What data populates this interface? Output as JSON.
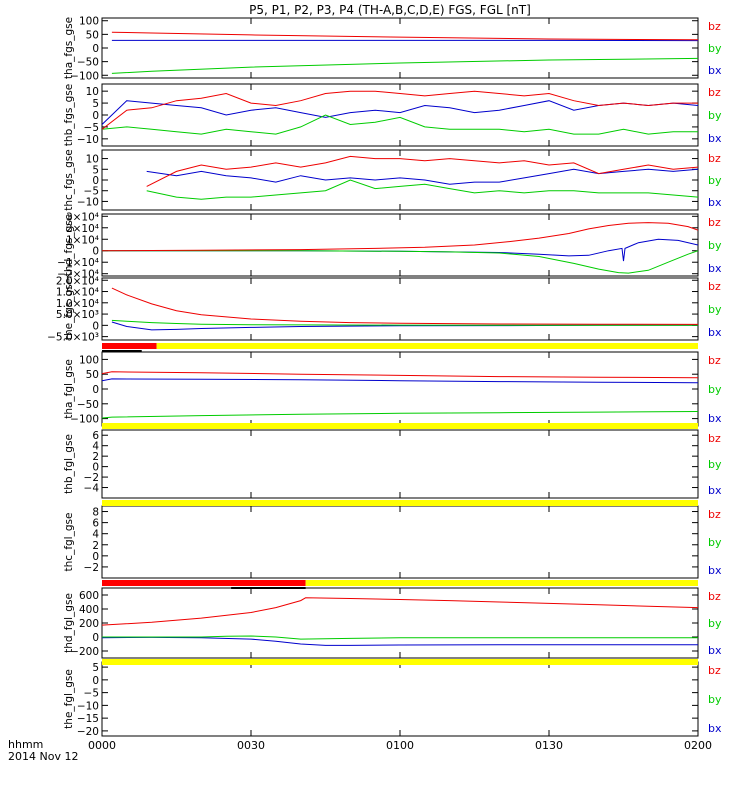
{
  "title": "P5, P1, P2, P3, P4 (TH-A,B,C,D,E) FGS, FGL [nT]",
  "footer": {
    "time_label": "hhmm",
    "date_label": "2014 Nov 12"
  },
  "legend_labels": [
    "bz",
    "by",
    "bx"
  ],
  "colors": {
    "bx": "#0000cc",
    "by": "#00cc00",
    "bz": "#ee0000",
    "bar_yellow": "#ffff00",
    "bar_red": "#ff0000",
    "bar_black": "#000000"
  },
  "chart_data": [
    {
      "type": "line",
      "panel": "tha_fgs_gse",
      "ylabel": "tha_fgs_gse",
      "xlim": [
        0,
        120
      ],
      "ylim": [
        -110,
        110
      ],
      "yticks": [
        100,
        50,
        0,
        -50,
        -100
      ],
      "yticklabels": [
        "100",
        "50",
        "0",
        "−50",
        "−100"
      ],
      "series": [
        {
          "name": "bz",
          "x": [
            2,
            10,
            30,
            60,
            90,
            120
          ],
          "y": [
            58,
            55,
            48,
            40,
            33,
            30
          ]
        },
        {
          "name": "by",
          "x": [
            2,
            10,
            30,
            60,
            90,
            120
          ],
          "y": [
            -93,
            -85,
            -70,
            -55,
            -44,
            -38
          ]
        },
        {
          "name": "bx",
          "x": [
            2,
            10,
            30,
            60,
            90,
            120
          ],
          "y": [
            28,
            28,
            28,
            28,
            28,
            27
          ]
        }
      ]
    },
    {
      "type": "line",
      "panel": "thb_fgs_gse",
      "ylabel": "thb_fgs_gse",
      "xlim": [
        0,
        120
      ],
      "ylim": [
        -13,
        13
      ],
      "yticks": [
        10,
        5,
        0,
        -5,
        -10
      ],
      "yticklabels": [
        "10",
        "5",
        "0",
        "−5",
        "−10"
      ],
      "series": [
        {
          "name": "bz",
          "x": [
            0,
            5,
            10,
            15,
            20,
            25,
            30,
            35,
            40,
            45,
            50,
            55,
            60,
            65,
            70,
            75,
            80,
            85,
            90,
            95,
            100,
            105,
            110,
            115,
            120
          ],
          "y": [
            -6,
            2,
            3,
            6,
            7,
            9,
            5,
            4,
            6,
            9,
            10,
            10,
            9,
            8,
            9,
            10,
            9,
            8,
            9,
            6,
            4,
            5,
            4,
            5,
            5
          ]
        },
        {
          "name": "by",
          "x": [
            0,
            5,
            10,
            15,
            20,
            25,
            30,
            35,
            40,
            45,
            50,
            55,
            60,
            65,
            70,
            75,
            80,
            85,
            90,
            95,
            100,
            105,
            110,
            115,
            120
          ],
          "y": [
            -6,
            -5,
            -6,
            -7,
            -8,
            -6,
            -7,
            -8,
            -5,
            0,
            -4,
            -3,
            -1,
            -5,
            -6,
            -6,
            -6,
            -7,
            -6,
            -8,
            -8,
            -6,
            -8,
            -7,
            -7
          ]
        },
        {
          "name": "bx",
          "x": [
            0,
            5,
            10,
            15,
            20,
            25,
            30,
            35,
            40,
            45,
            50,
            55,
            60,
            65,
            70,
            75,
            80,
            85,
            90,
            95,
            100,
            105,
            110,
            115,
            120
          ],
          "y": [
            -4,
            6,
            5,
            4,
            3,
            0,
            2,
            3,
            1,
            -1,
            1,
            2,
            1,
            4,
            3,
            1,
            2,
            4,
            6,
            2,
            4,
            5,
            4,
            5,
            4
          ]
        }
      ]
    },
    {
      "type": "line",
      "panel": "thc_fgs_gse",
      "ylabel": "thc_fgs_gse",
      "xlim": [
        0,
        120
      ],
      "ylim": [
        -14,
        14
      ],
      "yticks": [
        10,
        5,
        0,
        -5,
        -10
      ],
      "yticklabels": [
        "10",
        "5",
        "0",
        "−5",
        "−10"
      ],
      "series": [
        {
          "name": "bz",
          "x": [
            9,
            15,
            20,
            25,
            30,
            35,
            40,
            45,
            50,
            55,
            60,
            65,
            70,
            75,
            80,
            85,
            90,
            95,
            100,
            105,
            110,
            115,
            120
          ],
          "y": [
            -3,
            4,
            7,
            5,
            6,
            8,
            6,
            8,
            11,
            10,
            10,
            9,
            10,
            9,
            8,
            9,
            7,
            8,
            3,
            5,
            7,
            5,
            6
          ]
        },
        {
          "name": "by",
          "x": [
            9,
            15,
            20,
            25,
            30,
            35,
            40,
            45,
            50,
            55,
            60,
            65,
            70,
            75,
            80,
            85,
            90,
            95,
            100,
            105,
            110,
            115,
            120
          ],
          "y": [
            -5,
            -8,
            -9,
            -8,
            -8,
            -7,
            -6,
            -5,
            0,
            -4,
            -3,
            -2,
            -4,
            -6,
            -5,
            -6,
            -5,
            -5,
            -6,
            -6,
            -6,
            -7,
            -8
          ]
        },
        {
          "name": "bx",
          "x": [
            9,
            15,
            20,
            25,
            30,
            35,
            40,
            45,
            50,
            55,
            60,
            65,
            70,
            75,
            80,
            85,
            90,
            95,
            100,
            105,
            110,
            115,
            120
          ],
          "y": [
            4,
            2,
            4,
            2,
            1,
            -1,
            2,
            0,
            1,
            0,
            1,
            0,
            -2,
            -1,
            -1,
            1,
            3,
            5,
            3,
            4,
            5,
            4,
            5
          ]
        }
      ]
    },
    {
      "type": "line",
      "panel": "thd_fgs_gse",
      "ylabel": "thd_fgs_gse",
      "xlim": [
        0,
        120
      ],
      "ylim": [
        -22000,
        32000
      ],
      "yticks": [
        30000,
        20000,
        10000,
        0,
        -10000,
        -20000
      ],
      "yticklabels": [
        "3×10⁴",
        "2×10⁴",
        "1×10⁴",
        "0",
        "−1×10⁴",
        "−2×10⁴"
      ],
      "series": [
        {
          "name": "bz",
          "x": [
            0,
            20,
            40,
            55,
            65,
            75,
            82,
            88,
            94,
            98,
            102,
            106,
            110,
            114,
            118,
            120
          ],
          "y": [
            0,
            500,
            1000,
            2000,
            3000,
            5000,
            8000,
            11000,
            15000,
            19000,
            22000,
            24000,
            24500,
            24000,
            21000,
            18000
          ]
        },
        {
          "name": "by",
          "x": [
            0,
            40,
            60,
            70,
            80,
            88,
            95,
            100,
            104,
            106,
            110,
            114,
            118,
            120
          ],
          "y": [
            0,
            0,
            -500,
            -1000,
            -2000,
            -5000,
            -11000,
            -16000,
            -19000,
            -19500,
            -17000,
            -10000,
            -3000,
            0
          ]
        },
        {
          "name": "bx",
          "x": [
            0,
            40,
            60,
            70,
            80,
            88,
            94,
            98,
            102,
            104.7,
            105,
            105.3,
            108,
            112,
            116,
            120
          ],
          "y": [
            0,
            0,
            -500,
            -1000,
            -1500,
            -3000,
            -4500,
            -4000,
            0,
            2000,
            -9000,
            2000,
            7000,
            10000,
            9000,
            5000
          ]
        }
      ]
    },
    {
      "type": "line",
      "panel": "the_fgs_gse",
      "ylabel": "the_fgs_gse",
      "xlim": [
        0,
        120
      ],
      "ylim": [
        -6500,
        21000
      ],
      "yticks": [
        20000,
        15000,
        10000,
        5000,
        0,
        -5000
      ],
      "yticklabels": [
        "2.0×10⁴",
        "1.5×10⁴",
        "1.0×10⁴",
        "5.0×10³",
        "0",
        "−5.0×10³"
      ],
      "series": [
        {
          "name": "bz",
          "x": [
            2,
            5,
            10,
            15,
            20,
            30,
            40,
            50,
            60,
            80,
            100,
            120
          ],
          "y": [
            16500,
            13500,
            9500,
            6500,
            4700,
            2800,
            1800,
            1200,
            900,
            600,
            500,
            400
          ]
        },
        {
          "name": "by",
          "x": [
            2,
            5,
            10,
            15,
            20,
            30,
            40,
            60,
            80,
            100,
            120
          ],
          "y": [
            2200,
            1800,
            1200,
            800,
            500,
            300,
            200,
            100,
            50,
            50,
            0
          ]
        },
        {
          "name": "bx",
          "x": [
            2,
            5,
            10,
            15,
            20,
            30,
            40,
            60,
            80,
            100,
            120
          ],
          "y": [
            1500,
            -500,
            -2000,
            -1800,
            -1400,
            -900,
            -500,
            -200,
            -100,
            0,
            0
          ]
        }
      ]
    },
    {
      "type": "line",
      "panel": "tha_fgl_gse",
      "ylabel": "tha_fgl_gse",
      "xlim": [
        0,
        120
      ],
      "ylim": [
        -125,
        125
      ],
      "yticks": [
        100,
        50,
        0,
        -50,
        -100
      ],
      "yticklabels": [
        "100",
        "50",
        "0",
        "−50",
        "−100"
      ],
      "series": [
        {
          "name": "bz",
          "x": [
            0,
            2,
            20,
            40,
            60,
            80,
            100,
            120
          ],
          "y": [
            52,
            58,
            55,
            50,
            46,
            42,
            40,
            38
          ]
        },
        {
          "name": "by",
          "x": [
            0,
            2,
            20,
            40,
            60,
            80,
            100,
            120
          ],
          "y": [
            -98,
            -95,
            -90,
            -85,
            -82,
            -80,
            -78,
            -76
          ]
        },
        {
          "name": "bx",
          "x": [
            0,
            2,
            20,
            40,
            60,
            80,
            100,
            120
          ],
          "y": [
            28,
            34,
            33,
            31,
            28,
            25,
            23,
            21
          ]
        }
      ]
    },
    {
      "type": "line",
      "panel": "thb_fgl_gse",
      "ylabel": "thb_fgl_gse",
      "xlim": [
        0,
        120
      ],
      "ylim": [
        -6,
        7
      ],
      "yticks": [
        6,
        4,
        2,
        0,
        -2,
        -4
      ],
      "yticklabels": [
        "6",
        "4",
        "2",
        "0",
        "−2",
        "−4"
      ],
      "series": []
    },
    {
      "type": "line",
      "panel": "thc_fgl_gse",
      "ylabel": "thc_fgl_gse",
      "xlim": [
        0,
        120
      ],
      "ylim": [
        -4,
        9
      ],
      "yticks": [
        8,
        6,
        4,
        2,
        0,
        -2
      ],
      "yticklabels": [
        "8",
        "6",
        "4",
        "2",
        "0",
        "−2"
      ],
      "series": []
    },
    {
      "type": "line",
      "panel": "thd_fgl_gse",
      "ylabel": "thd_fgl_gse",
      "xlim": [
        0,
        120
      ],
      "ylim": [
        -300,
        700
      ],
      "yticks": [
        600,
        400,
        200,
        0,
        -200
      ],
      "yticklabels": [
        "600",
        "400",
        "200",
        "0",
        "−200"
      ],
      "series": [
        {
          "name": "bz",
          "x": [
            0,
            10,
            20,
            30,
            35,
            40,
            41,
            50,
            60,
            70,
            80,
            90,
            100,
            110,
            120
          ],
          "y": [
            170,
            210,
            270,
            350,
            420,
            520,
            560,
            550,
            535,
            520,
            500,
            480,
            460,
            440,
            420
          ]
        },
        {
          "name": "by",
          "x": [
            0,
            10,
            20,
            25,
            30,
            35,
            40,
            50,
            60,
            80,
            100,
            120
          ],
          "y": [
            0,
            0,
            0,
            10,
            15,
            0,
            -30,
            -20,
            -10,
            -10,
            -10,
            -10
          ]
        },
        {
          "name": "bx",
          "x": [
            0,
            10,
            20,
            30,
            35,
            40,
            45,
            50,
            60,
            80,
            100,
            120
          ],
          "y": [
            -10,
            -5,
            -10,
            -30,
            -60,
            -100,
            -120,
            -120,
            -115,
            -110,
            -110,
            -110
          ]
        }
      ]
    },
    {
      "type": "line",
      "panel": "the_fgl_gse",
      "ylabel": "the_fgl_gse",
      "xlim": [
        0,
        120
      ],
      "ylim": [
        -22,
        7
      ],
      "yticks": [
        5,
        0,
        -5,
        -10,
        -15,
        -20
      ],
      "yticklabels": [
        "5",
        "0",
        "−5",
        "−10",
        "−15",
        "−20"
      ],
      "series": []
    }
  ],
  "mode_bars": [
    {
      "after_panel": 4,
      "segments": [
        {
          "color": "bar_red",
          "start": 0,
          "end": 11
        },
        {
          "color": "bar_yellow",
          "start": 11,
          "end": 120
        }
      ],
      "marks": [
        {
          "start": 0,
          "end": 8
        }
      ]
    },
    {
      "after_panel": 5,
      "segments": [
        {
          "color": "bar_yellow",
          "start": 0,
          "end": 120
        }
      ],
      "marks": []
    },
    {
      "after_panel": 6,
      "segments": [
        {
          "color": "bar_yellow",
          "start": 0,
          "end": 120
        }
      ],
      "marks": []
    },
    {
      "after_panel": 7,
      "segments": [
        {
          "color": "bar_red",
          "start": 0,
          "end": 41
        },
        {
          "color": "bar_yellow",
          "start": 41,
          "end": 120
        }
      ],
      "marks": [
        {
          "start": 26,
          "end": 41
        }
      ]
    },
    {
      "after_panel": 8,
      "segments": [
        {
          "color": "bar_yellow",
          "start": 0,
          "end": 120
        }
      ],
      "marks": []
    }
  ],
  "x_axis": {
    "ticks": [
      0,
      30,
      60,
      90,
      120
    ],
    "labels": [
      "0000",
      "0030",
      "0100",
      "0130",
      "0200"
    ]
  }
}
